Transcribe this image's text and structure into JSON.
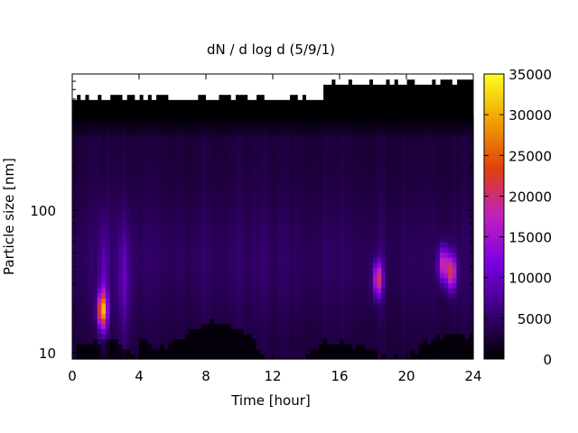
{
  "chart_data": {
    "type": "heatmap",
    "title": "dN / d log d (5/9/1)",
    "xlabel": "Time [hour]",
    "ylabel": "Particle size [nm]",
    "x_ticks": [
      "0",
      "4",
      "8",
      "12",
      "16",
      "20",
      "24"
    ],
    "x_tick_values": [
      0,
      4,
      8,
      12,
      16,
      20,
      24
    ],
    "xlim": [
      0,
      24
    ],
    "y_scale": "log",
    "y_ticks": [
      "10",
      "100"
    ],
    "y_tick_values": [
      10,
      100
    ],
    "ylim": [
      9,
      900
    ],
    "colorbar": {
      "ticks": [
        "0",
        "5000",
        "10000",
        "15000",
        "20000",
        "25000",
        "30000",
        "35000"
      ],
      "tick_values": [
        0,
        5000,
        10000,
        15000,
        20000,
        25000,
        30000,
        35000
      ],
      "range": [
        0,
        35000
      ],
      "colormap": [
        "#000000",
        "#3a007a",
        "#7a00e0",
        "#c020c0",
        "#e04010",
        "#f0a000",
        "#ffff20"
      ]
    },
    "background_level": 3500,
    "features": [
      {
        "time": 1.8,
        "size": 20,
        "peak": 24000
      },
      {
        "time": 18.3,
        "size": 33,
        "peak": 17000
      },
      {
        "time": 22.2,
        "size": 42,
        "peak": 15000
      },
      {
        "time": 22.7,
        "size": 37,
        "peak": 18000
      }
    ],
    "grid": false
  }
}
